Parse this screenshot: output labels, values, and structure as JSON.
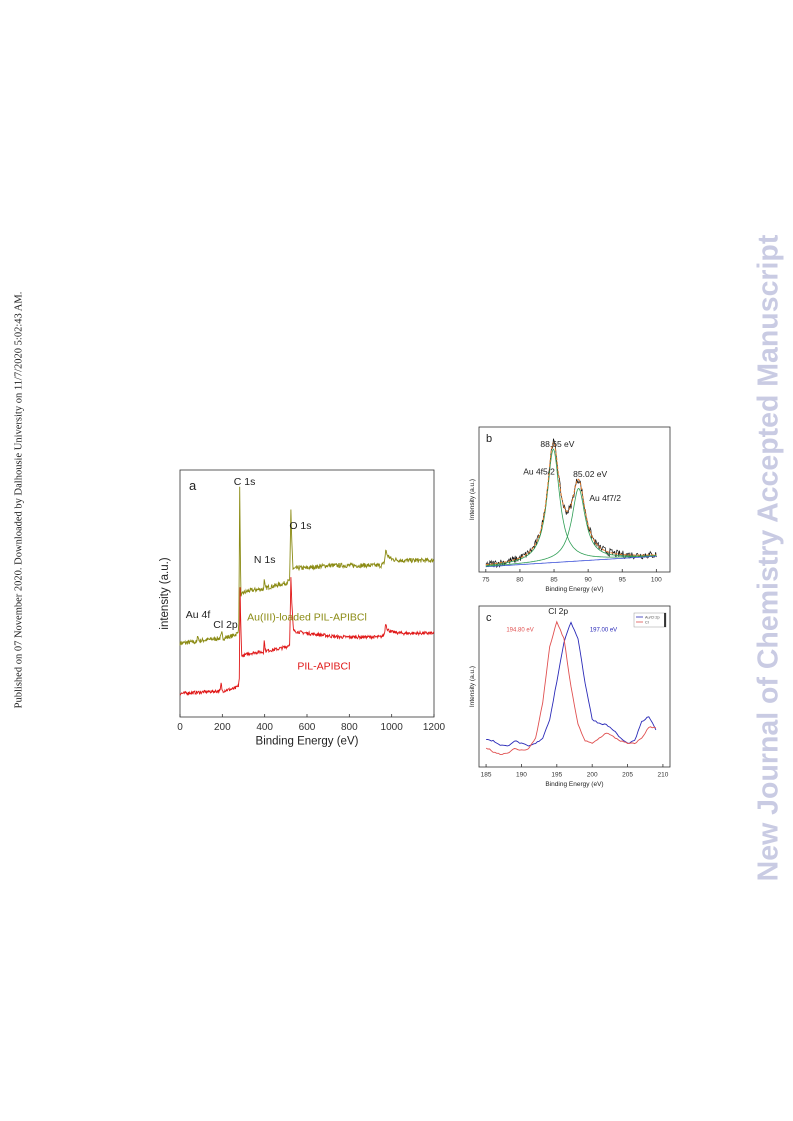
{
  "side_text": {
    "left": "Published on 07 November 2020. Downloaded by Dalhousie University on 11/7/2020 5:02:43 AM.",
    "right": "New Journal of Chemistry Accepted Manuscript"
  },
  "colors": {
    "loaded": "#8b8b14",
    "pil": "#e01818",
    "fit_orange": "#e37a2a",
    "fit_green": "#2f9e55",
    "baseline": "#3a4fd8",
    "blue": "#2a2ab8",
    "red": "#e05050",
    "raw": "#111111"
  },
  "chart_data": [
    {
      "panel": "a",
      "type": "line",
      "panel_label": "a",
      "xlabel": "Binding Energy (eV)",
      "ylabel": "intensity (a.u.)",
      "xlim": [
        0,
        1200
      ],
      "xticks": [
        "0",
        "200",
        "400",
        "600",
        "800",
        "1000",
        "1200"
      ],
      "grid": false,
      "series": [
        {
          "name": "Au(III)-loaded PIL-APIBCl",
          "color": "#8b8b14",
          "points": [
            [
              0,
              46
            ],
            [
              60,
              47
            ],
            [
              80,
              47
            ],
            [
              84,
              53
            ],
            [
              90,
              48
            ],
            [
              140,
              49
            ],
            [
              190,
              50
            ],
            [
              198,
              54
            ],
            [
              204,
              50
            ],
            [
              250,
              52
            ],
            [
              272,
              54
            ],
            [
              278,
              60
            ],
            [
              282,
              170
            ],
            [
              284,
              136
            ],
            [
              288,
              82
            ],
            [
              296,
              86
            ],
            [
              330,
              88
            ],
            [
              380,
              89
            ],
            [
              394,
              89
            ],
            [
              398,
              96
            ],
            [
              403,
              90
            ],
            [
              450,
              92
            ],
            [
              500,
              94
            ],
            [
              518,
              96
            ],
            [
              524,
              152
            ],
            [
              528,
              128
            ],
            [
              534,
              105
            ],
            [
              560,
              106
            ],
            [
              600,
              106
            ],
            [
              650,
              107
            ],
            [
              700,
              108
            ],
            [
              750,
              108
            ],
            [
              800,
              108
            ],
            [
              850,
              108
            ],
            [
              900,
              108
            ],
            [
              950,
              108
            ],
            [
              965,
              110
            ],
            [
              972,
              120
            ],
            [
              980,
              116
            ],
            [
              1000,
              113
            ],
            [
              1050,
              112
            ],
            [
              1100,
              112
            ],
            [
              1150,
              112
            ],
            [
              1200,
              112
            ]
          ],
          "noise": 1.8
        },
        {
          "name": "PIL-APIBCl",
          "color": "#e01818",
          "points": [
            [
              0,
              6
            ],
            [
              100,
              7
            ],
            [
              190,
              8
            ],
            [
              194,
              14
            ],
            [
              200,
              8
            ],
            [
              260,
              10
            ],
            [
              276,
              12
            ],
            [
              280,
              18
            ],
            [
              284,
              90
            ],
            [
              287,
              60
            ],
            [
              292,
              36
            ],
            [
              296,
              36
            ],
            [
              330,
              38
            ],
            [
              380,
              39
            ],
            [
              394,
              39
            ],
            [
              398,
              48
            ],
            [
              403,
              40
            ],
            [
              450,
              41
            ],
            [
              500,
              43
            ],
            [
              518,
              45
            ],
            [
              524,
              100
            ],
            [
              528,
              78
            ],
            [
              536,
              56
            ],
            [
              560,
              55
            ],
            [
              600,
              54
            ],
            [
              650,
              53
            ],
            [
              700,
              52
            ],
            [
              750,
              51
            ],
            [
              800,
              51
            ],
            [
              850,
              51
            ],
            [
              900,
              51
            ],
            [
              950,
              51
            ],
            [
              965,
              53
            ],
            [
              972,
              62
            ],
            [
              980,
              57
            ],
            [
              1000,
              55
            ],
            [
              1050,
              54
            ],
            [
              1100,
              54
            ],
            [
              1150,
              54
            ],
            [
              1200,
              54
            ]
          ],
          "noise": 1.3
        }
      ],
      "annotations": [
        {
          "text": "C 1s",
          "x": 305,
          "y": 172
        },
        {
          "text": "O 1s",
          "x": 569,
          "y": 137
        },
        {
          "text": "N 1s",
          "x": 400,
          "y": 110
        },
        {
          "text": "Au 4f",
          "x": 85,
          "y": 66
        },
        {
          "text": "Cl 2p",
          "x": 215,
          "y": 58
        },
        {
          "text": "Au(III)-loaded PIL-APIBCl",
          "x": 600,
          "y": 64
        },
        {
          "text": "PIL-APIBCl",
          "x": 680,
          "y": 25
        }
      ]
    },
    {
      "panel": "b",
      "type": "line",
      "panel_label": "b",
      "xlabel": "Binding Energy (eV)",
      "ylabel": "Intensity (a.u.)",
      "xlim": [
        74,
        102
      ],
      "xticks": [
        "75",
        "80",
        "85",
        "90",
        "95",
        "100"
      ],
      "ylim": [
        0,
        1.1
      ],
      "grid": false,
      "peaks": [
        {
          "center": 84.9,
          "height": 0.86,
          "width": 1.1,
          "color": "#2f9e55"
        },
        {
          "center": 88.6,
          "height": 0.55,
          "width": 1.2,
          "color": "#2f9e55"
        }
      ],
      "baseline": {
        "start": [
          75,
          0.04
        ],
        "end": [
          100,
          0.12
        ]
      },
      "raw_noise": 0.03,
      "annotations": [
        {
          "text": "88.65 eV",
          "x": 85.5,
          "y": 0.95
        },
        {
          "text": "Au 4f5/2",
          "x": 82.8,
          "y": 0.74
        },
        {
          "text": "85.02 eV",
          "x": 90.3,
          "y": 0.72
        },
        {
          "text": "Au 4f7/2",
          "x": 92.5,
          "y": 0.54
        }
      ]
    },
    {
      "panel": "c",
      "type": "line",
      "panel_label": "c",
      "xlabel": "Binding Energy (eV)",
      "ylabel": "Intensity (a.u.)",
      "xlim": [
        184,
        211
      ],
      "xticks": [
        "185",
        "190",
        "195",
        "200",
        "205",
        "210"
      ],
      "ylim": [
        0,
        1.12
      ],
      "grid": false,
      "legend": {
        "position": "top-right",
        "entries": [
          "Au/Cl 2p",
          "Cl"
        ]
      },
      "series": [
        {
          "color": "#2a2ab8",
          "points": [
            [
              185,
              0.13
            ],
            [
              186,
              0.12
            ],
            [
              187,
              0.09
            ],
            [
              188,
              0.08
            ],
            [
              189,
              0.12
            ],
            [
              190,
              0.1
            ],
            [
              191,
              0.08
            ],
            [
              192,
              0.1
            ],
            [
              193,
              0.14
            ],
            [
              194,
              0.28
            ],
            [
              195,
              0.56
            ],
            [
              196,
              0.85
            ],
            [
              197,
              1.0
            ],
            [
              198,
              0.88
            ],
            [
              199,
              0.55
            ],
            [
              200,
              0.28
            ],
            [
              201,
              0.25
            ],
            [
              202,
              0.24
            ],
            [
              203,
              0.2
            ],
            [
              204,
              0.14
            ],
            [
              205,
              0.1
            ],
            [
              206,
              0.12
            ],
            [
              207,
              0.26
            ],
            [
              208,
              0.3
            ],
            [
              209,
              0.2
            ]
          ]
        },
        {
          "color": "#e05050",
          "points": [
            [
              185,
              0.07
            ],
            [
              186,
              0.04
            ],
            [
              187,
              0.02
            ],
            [
              188,
              0.03
            ],
            [
              189,
              0.06
            ],
            [
              190,
              0.05
            ],
            [
              191,
              0.06
            ],
            [
              192,
              0.14
            ],
            [
              193,
              0.4
            ],
            [
              194,
              0.82
            ],
            [
              195,
              1.0
            ],
            [
              196,
              0.88
            ],
            [
              197,
              0.52
            ],
            [
              198,
              0.24
            ],
            [
              199,
              0.12
            ],
            [
              200,
              0.1
            ],
            [
              201,
              0.14
            ],
            [
              202,
              0.18
            ],
            [
              203,
              0.15
            ],
            [
              204,
              0.12
            ],
            [
              205,
              0.1
            ],
            [
              206,
              0.1
            ],
            [
              207,
              0.14
            ],
            [
              208,
              0.22
            ],
            [
              209,
              0.22
            ]
          ]
        }
      ],
      "annotations": [
        {
          "text": "Cl 2p",
          "x": 195.2,
          "y": 1.06
        },
        {
          "text": "194.80 eV",
          "x": 189.8,
          "y": 0.93
        },
        {
          "text": "197.00 eV",
          "x": 201.6,
          "y": 0.93
        }
      ]
    }
  ]
}
